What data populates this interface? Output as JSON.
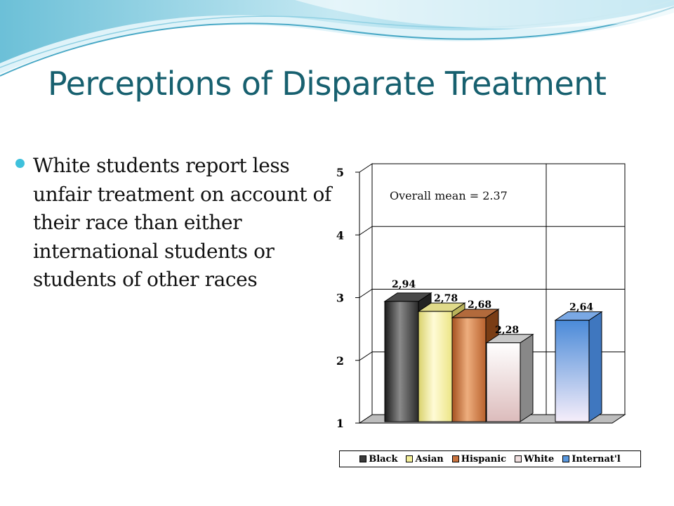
{
  "slide": {
    "title": "Perceptions of Disparate Treatment",
    "bullet": "White students report less unfair treatment on account of their race than either international students or students of other races"
  },
  "chart_data": {
    "type": "bar",
    "categories": [
      "Black",
      "Asian",
      "Hispanic",
      "White",
      "Internat'l"
    ],
    "values": [
      2.94,
      2.78,
      2.68,
      2.28,
      2.64
    ],
    "data_labels": [
      "2,94",
      "2,78",
      "2,68",
      "2,28",
      "2,64"
    ],
    "y_ticks": [
      "1",
      "2",
      "3",
      "4",
      "5"
    ],
    "ylim": [
      1,
      5
    ],
    "annotation": "Overall mean = 2.37",
    "grid": true,
    "legend_position": "bottom",
    "colors": [
      "#3a3a3a",
      "#f4ef9a",
      "#c8733f",
      "#efdede",
      "#5a98de"
    ]
  }
}
